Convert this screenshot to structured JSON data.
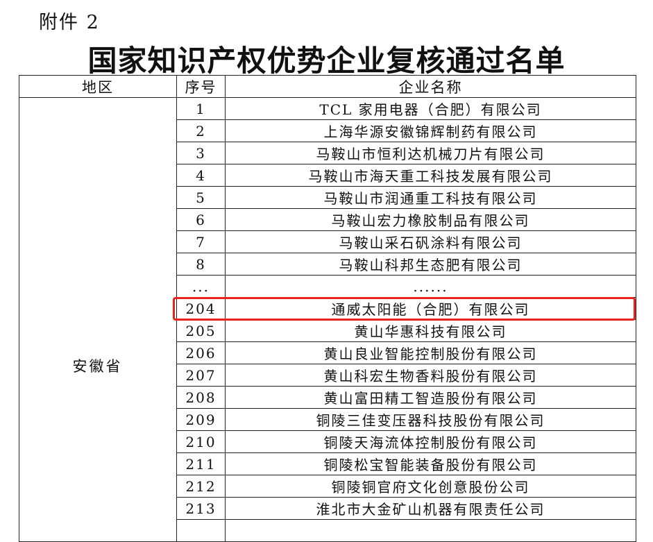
{
  "attachment_label": "附件 2",
  "title": "国家知识产权优势企业复核通过名单",
  "table": {
    "headers": [
      "地区",
      "序号",
      "企业名称"
    ],
    "region": "安徽省",
    "rows": [
      {
        "no": "1",
        "name": "TCL 家用电器（合肥）有限公司"
      },
      {
        "no": "2",
        "name": "上海华源安徽锦辉制药有限公司"
      },
      {
        "no": "3",
        "name": "马鞍山市恒利达机械刀片有限公司"
      },
      {
        "no": "4",
        "name": "马鞍山市海天重工科技发展有限公司"
      },
      {
        "no": "5",
        "name": "马鞍山市润通重工科技有限公司"
      },
      {
        "no": "6",
        "name": "马鞍山宏力橡胶制品有限公司"
      },
      {
        "no": "7",
        "name": "马鞍山采石矾涂料有限公司"
      },
      {
        "no": "8",
        "name": "马鞍山科邦生态肥有限公司"
      },
      {
        "no": "...",
        "name": "......"
      },
      {
        "no": "204",
        "name": "通威太阳能（合肥）有限公司",
        "highlighted": true
      },
      {
        "no": "205",
        "name": "黄山华惠科技有限公司"
      },
      {
        "no": "206",
        "name": "黄山良业智能控制股份有限公司"
      },
      {
        "no": "207",
        "name": "黄山科宏生物香料股份有限公司"
      },
      {
        "no": "208",
        "name": "黄山富田精工智造股份有限公司"
      },
      {
        "no": "209",
        "name": "铜陵三佳变压器科技股份有限公司"
      },
      {
        "no": "210",
        "name": "铜陵天海流体控制股份有限公司"
      },
      {
        "no": "211",
        "name": "铜陵松宝智能装备股份有限公司"
      },
      {
        "no": "212",
        "name": "铜陵铜官府文化创意股份公司"
      },
      {
        "no": "213",
        "name": "淮北市大金矿山机器有限责任公司"
      }
    ]
  },
  "highlight_color": "#e8241c"
}
